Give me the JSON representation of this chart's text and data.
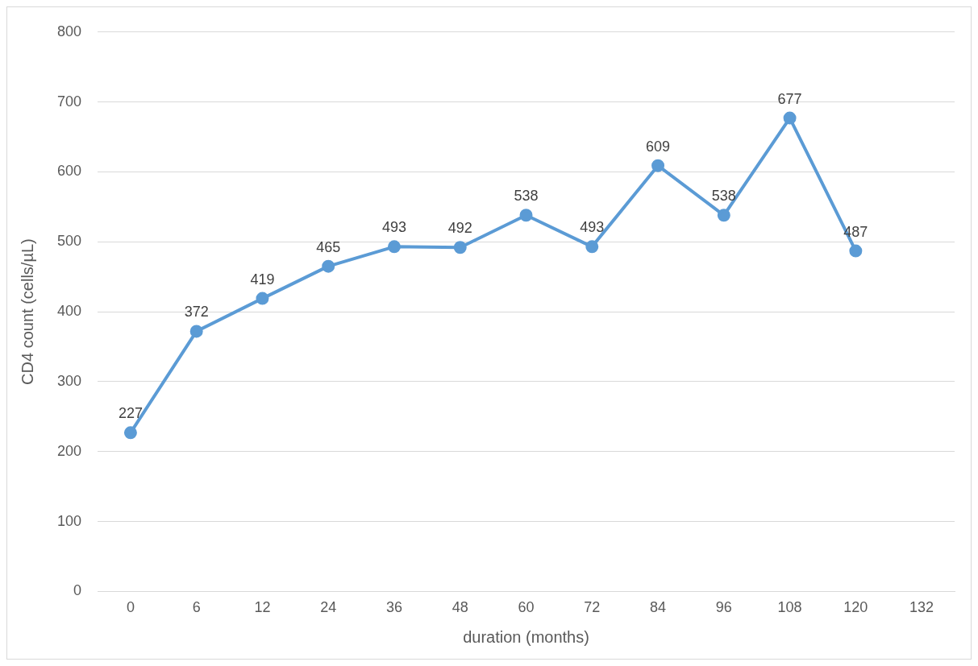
{
  "chart_data": {
    "type": "line",
    "xlabel": "duration (months)",
    "ylabel": "CD4 count (cells/µL)",
    "categories": [
      "0",
      "6",
      "12",
      "24",
      "36",
      "48",
      "60",
      "72",
      "84",
      "96",
      "108",
      "120",
      "132"
    ],
    "series": [
      {
        "color": "#5b9bd5",
        "values": [
          227,
          372,
          419,
          465,
          493,
          492,
          538,
          493,
          609,
          538,
          677,
          487,
          null
        ]
      }
    ],
    "ylim": [
      0,
      800
    ],
    "yticks": [
      0,
      100,
      200,
      300,
      400,
      500,
      600,
      700,
      800
    ],
    "grid": "y",
    "legend": false,
    "marker": "circle",
    "line_style": "solid",
    "data_labels": true
  }
}
